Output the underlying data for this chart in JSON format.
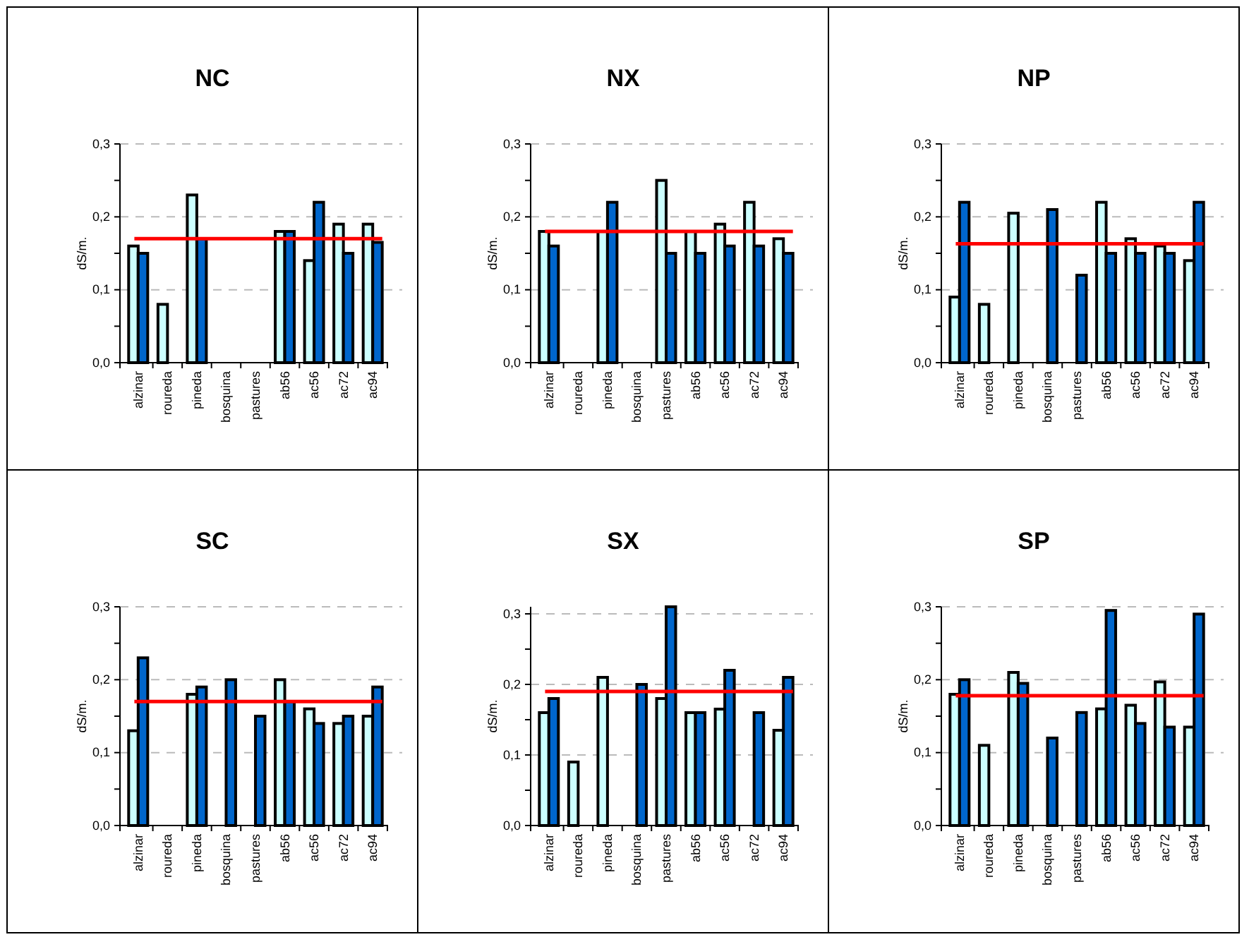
{
  "chart_data": [
    {
      "type": "bar",
      "title": "NC",
      "ylabel": "dS/m.",
      "categories": [
        "alzinar",
        "roureda",
        "pineda",
        "bosquina",
        "pastures",
        "ab56",
        "ac56",
        "ac72",
        "ac94"
      ],
      "series": [
        {
          "color": "#ccffff",
          "values": [
            0.16,
            0.08,
            0.23,
            null,
            null,
            0.18,
            0.14,
            0.19,
            0.19
          ]
        },
        {
          "color": "#0066cc",
          "values": [
            0.15,
            null,
            0.17,
            null,
            null,
            0.18,
            0.22,
            0.15,
            0.165
          ]
        }
      ],
      "ylim": [
        0,
        0.3
      ],
      "yticks": [
        {
          "value": 0,
          "label": "0,0"
        },
        {
          "value": 0.05,
          "label": null
        },
        {
          "value": 0.1,
          "label": "0,1"
        },
        {
          "value": 0.15,
          "label": null
        },
        {
          "value": 0.2,
          "label": "0,2"
        },
        {
          "value": 0.25,
          "label": null
        },
        {
          "value": 0.3,
          "label": "0,3"
        }
      ],
      "grid": "y",
      "ref_lines": [
        {
          "axis": "y",
          "value": 0.17,
          "color": "#ff0000"
        }
      ]
    },
    {
      "type": "bar",
      "title": "NX",
      "ylabel": "dS/m.",
      "categories": [
        "alzinar",
        "roureda",
        "pineda",
        "bosquina",
        "pastures",
        "ab56",
        "ac56",
        "ac72",
        "ac94"
      ],
      "series": [
        {
          "color": "#ccffff",
          "values": [
            0.18,
            null,
            0.18,
            null,
            0.25,
            0.18,
            0.19,
            0.22,
            0.17
          ]
        },
        {
          "color": "#0066cc",
          "values": [
            0.16,
            null,
            0.22,
            null,
            0.15,
            0.15,
            0.16,
            0.16,
            0.15
          ]
        }
      ],
      "ylim": [
        0,
        0.3
      ],
      "yticks": [
        {
          "value": 0,
          "label": "0,0"
        },
        {
          "value": 0.05,
          "label": null
        },
        {
          "value": 0.1,
          "label": "0,1"
        },
        {
          "value": 0.15,
          "label": null
        },
        {
          "value": 0.2,
          "label": "0,2"
        },
        {
          "value": 0.25,
          "label": null
        },
        {
          "value": 0.3,
          "label": "0,3"
        }
      ],
      "grid": "y",
      "ref_lines": [
        {
          "axis": "y",
          "value": 0.18,
          "color": "#ff0000"
        }
      ]
    },
    {
      "type": "bar",
      "title": "NP",
      "ylabel": "dS/m.",
      "categories": [
        "alzinar",
        "roureda",
        "pineda",
        "bosquina",
        "pastures",
        "ab56",
        "ac56",
        "ac72",
        "ac94"
      ],
      "series": [
        {
          "color": "#ccffff",
          "values": [
            0.09,
            0.08,
            0.205,
            null,
            null,
            0.22,
            0.17,
            0.16,
            0.14
          ]
        },
        {
          "color": "#0066cc",
          "values": [
            0.22,
            null,
            null,
            0.21,
            0.12,
            0.15,
            0.15,
            0.15,
            0.22
          ]
        }
      ],
      "ylim": [
        0,
        0.3
      ],
      "yticks": [
        {
          "value": 0,
          "label": "0,0"
        },
        {
          "value": 0.05,
          "label": null
        },
        {
          "value": 0.1,
          "label": "0,1"
        },
        {
          "value": 0.15,
          "label": null
        },
        {
          "value": 0.2,
          "label": "0,2"
        },
        {
          "value": 0.25,
          "label": null
        },
        {
          "value": 0.3,
          "label": "0,3"
        }
      ],
      "grid": "y",
      "ref_lines": [
        {
          "axis": "y",
          "value": 0.163,
          "color": "#ff0000"
        }
      ]
    },
    {
      "type": "bar",
      "title": "SC",
      "ylabel": "dS/m.",
      "categories": [
        "alzinar",
        "roureda",
        "pineda",
        "bosquina",
        "pastures",
        "ab56",
        "ac56",
        "ac72",
        "ac94"
      ],
      "series": [
        {
          "color": "#ccffff",
          "values": [
            0.13,
            null,
            0.18,
            null,
            null,
            0.2,
            0.16,
            0.14,
            0.15
          ]
        },
        {
          "color": "#0066cc",
          "values": [
            0.23,
            null,
            0.19,
            0.2,
            0.15,
            0.17,
            0.14,
            0.15,
            0.19
          ]
        }
      ],
      "ylim": [
        0,
        0.3
      ],
      "yticks": [
        {
          "value": 0,
          "label": "0,0"
        },
        {
          "value": 0.05,
          "label": null
        },
        {
          "value": 0.1,
          "label": "0,1"
        },
        {
          "value": 0.15,
          "label": null
        },
        {
          "value": 0.2,
          "label": "0,2"
        },
        {
          "value": 0.25,
          "label": null
        },
        {
          "value": 0.3,
          "label": "0,3"
        }
      ],
      "grid": "y",
      "ref_lines": [
        {
          "axis": "y",
          "value": 0.17,
          "color": "#ff0000"
        }
      ]
    },
    {
      "type": "bar",
      "title": "SX",
      "ylabel": "dS/m.",
      "categories": [
        "alzinar",
        "roureda",
        "pineda",
        "bosquina",
        "pastures",
        "ab56",
        "ac56",
        "ac72",
        "ac94"
      ],
      "series": [
        {
          "color": "#ccffff",
          "values": [
            0.16,
            0.09,
            0.21,
            null,
            0.18,
            0.16,
            0.165,
            null,
            0.135
          ]
        },
        {
          "color": "#0066cc",
          "values": [
            0.18,
            null,
            null,
            0.2,
            0.31,
            0.16,
            0.22,
            0.16,
            0.21
          ]
        }
      ],
      "ylim": [
        0,
        0.31
      ],
      "yticks": [
        {
          "value": 0,
          "label": "0,0"
        },
        {
          "value": 0.05,
          "label": null
        },
        {
          "value": 0.1,
          "label": "0,1"
        },
        {
          "value": 0.15,
          "label": null
        },
        {
          "value": 0.2,
          "label": "0,2"
        },
        {
          "value": 0.25,
          "label": null
        },
        {
          "value": 0.3,
          "label": "0,3"
        }
      ],
      "grid": "y",
      "ref_lines": [
        {
          "axis": "y",
          "value": 0.19,
          "color": "#ff0000"
        }
      ]
    },
    {
      "type": "bar",
      "title": "SP",
      "ylabel": "dS/m.",
      "categories": [
        "alzinar",
        "roureda",
        "pineda",
        "bosquina",
        "pastures",
        "ab56",
        "ac56",
        "ac72",
        "ac94"
      ],
      "series": [
        {
          "color": "#ccffff",
          "values": [
            0.18,
            0.11,
            0.21,
            null,
            null,
            0.16,
            0.165,
            0.197,
            0.135
          ]
        },
        {
          "color": "#0066cc",
          "values": [
            0.2,
            null,
            0.195,
            0.12,
            0.155,
            0.295,
            0.14,
            0.135,
            0.29
          ]
        }
      ],
      "ylim": [
        0,
        0.3
      ],
      "yticks": [
        {
          "value": 0,
          "label": "0,0"
        },
        {
          "value": 0.05,
          "label": null
        },
        {
          "value": 0.1,
          "label": "0,1"
        },
        {
          "value": 0.15,
          "label": null
        },
        {
          "value": 0.2,
          "label": "0,2"
        },
        {
          "value": 0.25,
          "label": null
        },
        {
          "value": 0.3,
          "label": "0,3"
        }
      ],
      "grid": "y",
      "ref_lines": [
        {
          "axis": "y",
          "value": 0.178,
          "color": "#ff0000"
        }
      ]
    }
  ]
}
